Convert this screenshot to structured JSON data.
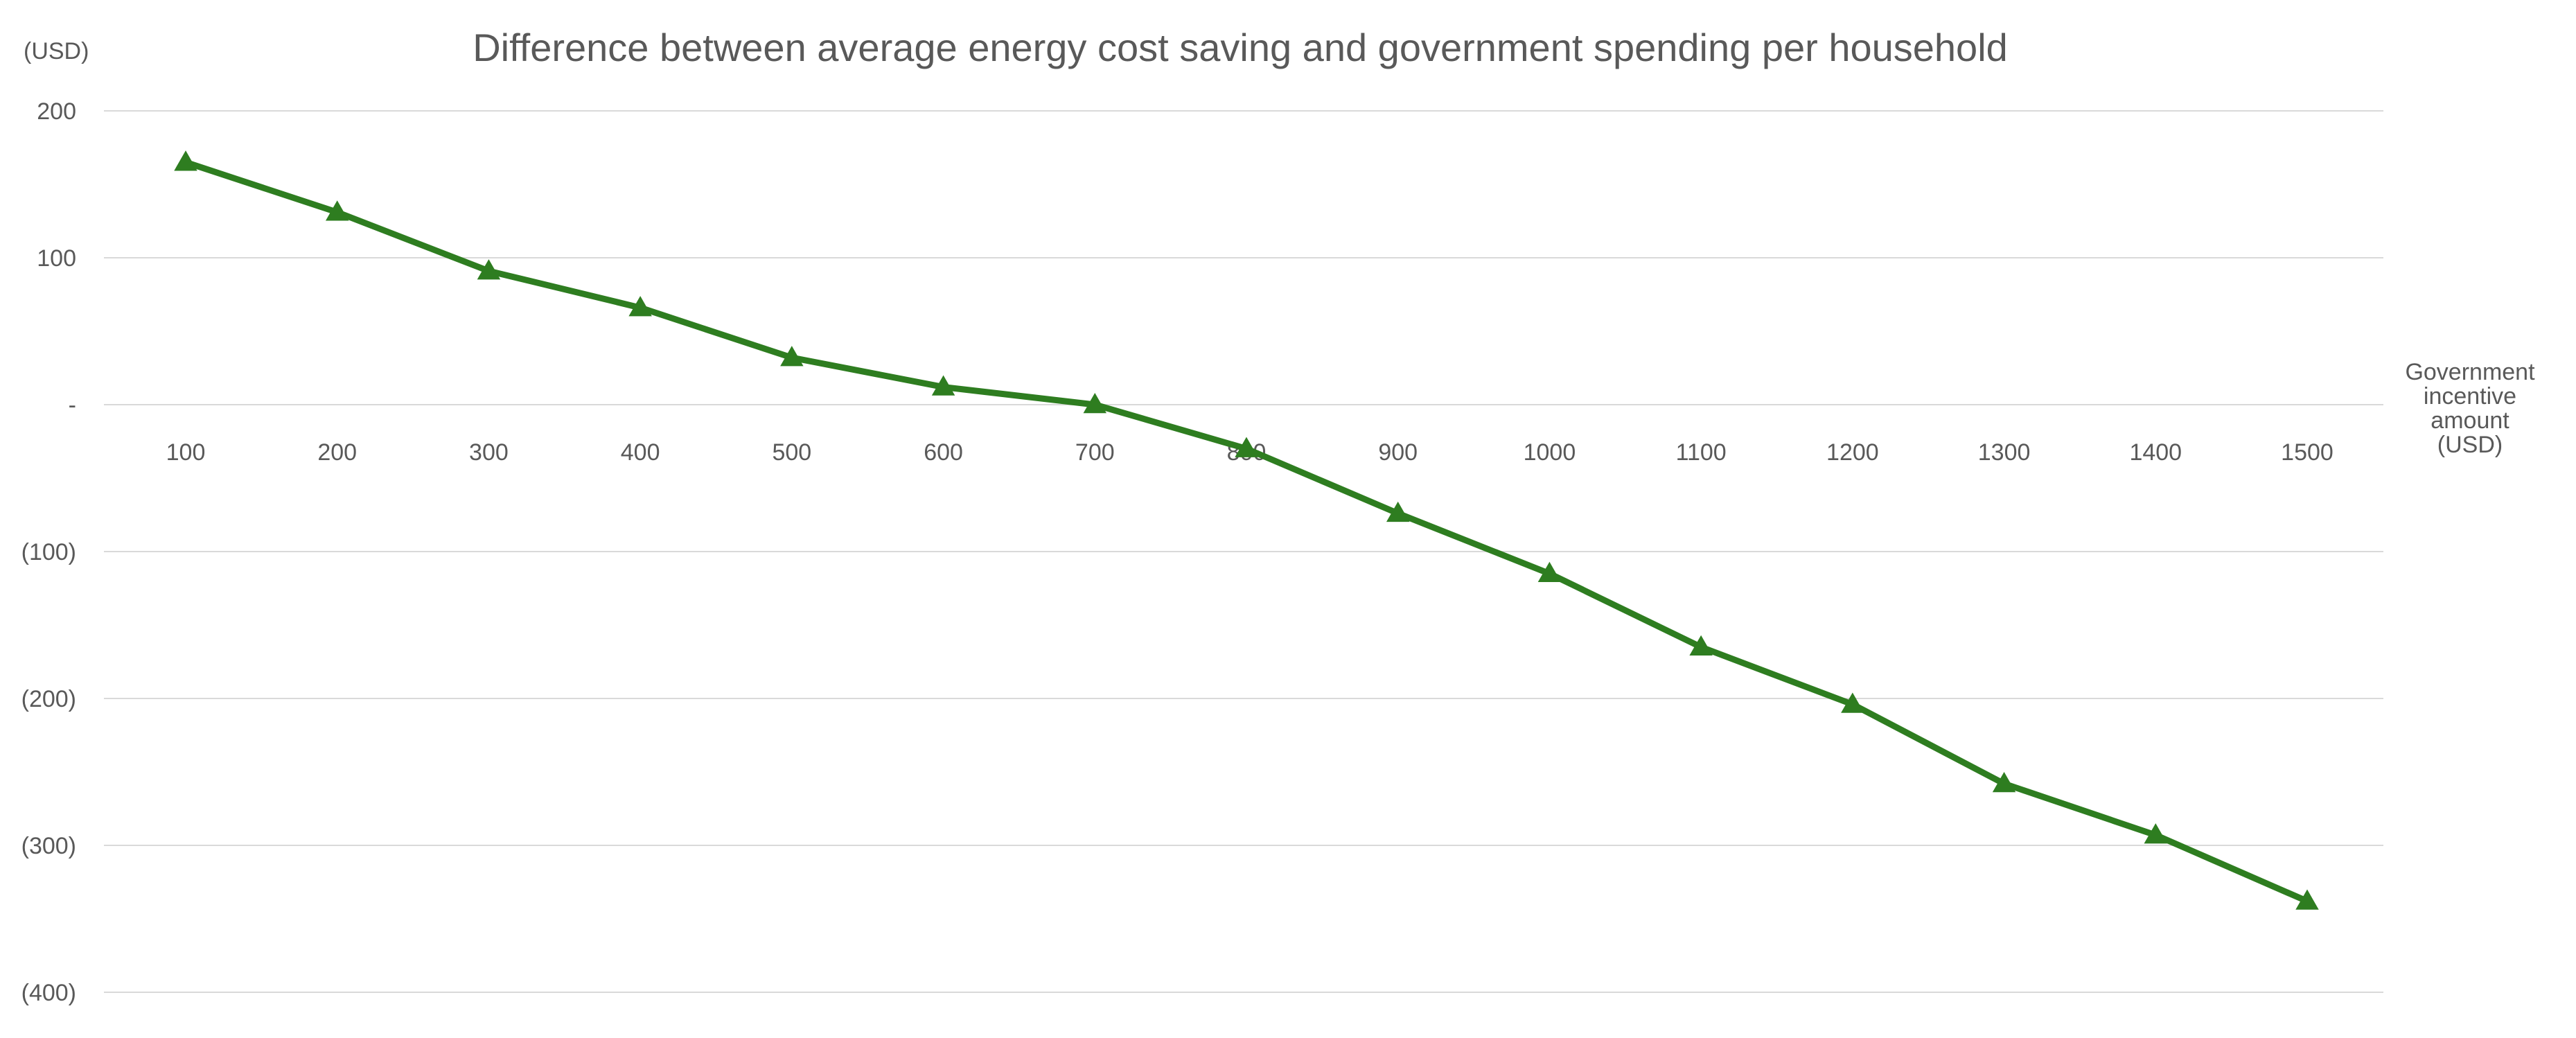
{
  "chart_data": {
    "type": "line",
    "title": "Difference between average energy cost saving and government spending per household",
    "y_unit_label": "(USD)",
    "xlabel_lines": [
      "Government",
      "incentive",
      "amount",
      "(USD)"
    ],
    "ylim": [
      -400,
      200
    ],
    "y_ticks": [
      {
        "value": 200,
        "label": "200"
      },
      {
        "value": 100,
        "label": "100"
      },
      {
        "value": 0,
        "label": "-"
      },
      {
        "value": -100,
        "label": "(100)"
      },
      {
        "value": -200,
        "label": "(200)"
      },
      {
        "value": -300,
        "label": "(300)"
      },
      {
        "value": -400,
        "label": "(400)"
      }
    ],
    "grid": true,
    "marker": "triangle",
    "line_color": "#2e7d20",
    "x": [
      "100",
      "200",
      "300",
      "400",
      "500",
      "600",
      "700",
      "800",
      "900",
      "1000",
      "1100",
      "1200",
      "1300",
      "1400",
      "1500"
    ],
    "series": [
      {
        "values": [
          165,
          131,
          91,
          66,
          32,
          12,
          0,
          -30,
          -74,
          -115,
          -165,
          -204,
          -258,
          -293,
          -338
        ]
      }
    ]
  }
}
